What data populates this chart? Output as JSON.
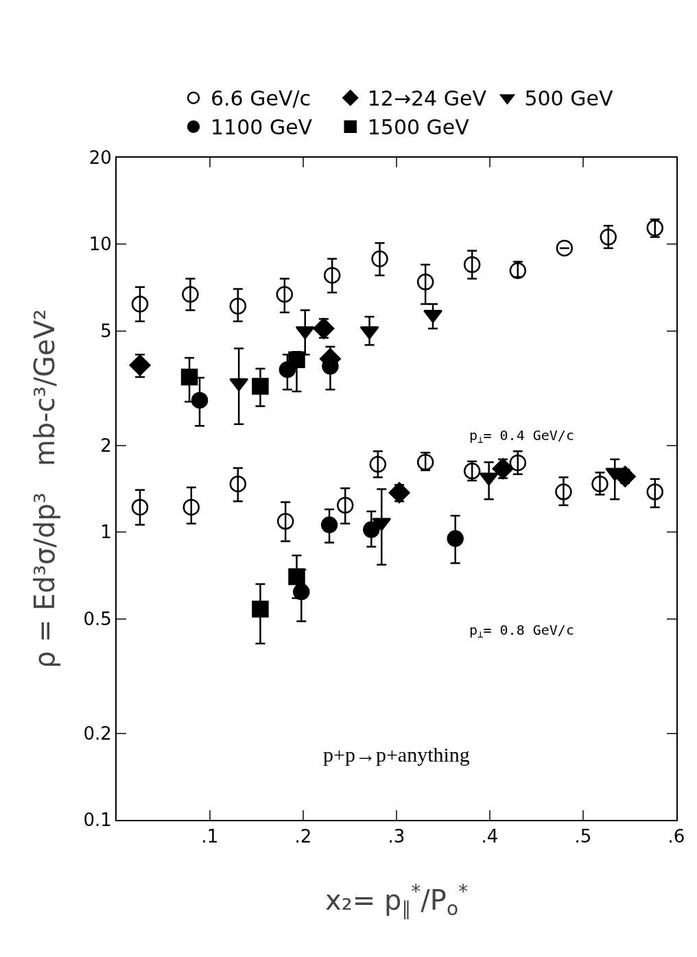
{
  "chart_data": {
    "type": "scatter",
    "xlabel": "x₂= p$_{∥}$$^{*}$/P$_{o}$$^{*}$",
    "ylabel": "ρ = Ed³σ/dp³   mb-c³/GeV²",
    "annotations": [
      "p$_{⊥}$= 0.4 GeV/c",
      "p$_{⊥}$= 0.8 GeV/c",
      "p+p→p+anything"
    ],
    "xlim": [
      0,
      0.6
    ],
    "xticks": [
      {
        "value": 0.1,
        "label": ".1"
      },
      {
        "value": 0.2,
        "label": ".2"
      },
      {
        "value": 0.3,
        "label": ".3"
      },
      {
        "value": 0.4,
        "label": ".4"
      },
      {
        "value": 0.5,
        "label": ".5"
      },
      {
        "value": 0.6,
        "label": ".6"
      }
    ],
    "ylim": [
      0.1,
      20
    ],
    "yticks": [
      {
        "value": 0.1,
        "label": "0.1"
      },
      {
        "value": 0.2,
        "label": "0.2"
      },
      {
        "value": 0.5,
        "label": "0.5"
      },
      1,
      2,
      5,
      10,
      20
    ],
    "log": "y",
    "grid": false,
    "legend": "top",
    "series": [
      {
        "name": "6.6 GeV/c",
        "color": "#000000",
        "marker": "circle-open",
        "x": [
          0.025,
          0.079,
          0.13,
          0.18,
          0.231,
          0.282,
          0.331,
          0.381,
          0.43,
          0.48,
          0.527,
          0.577,
          0.025,
          0.08,
          0.13,
          0.181,
          0.245,
          0.28,
          0.331,
          0.381,
          0.43,
          0.479,
          0.518,
          0.577
        ],
        "values": [
          6.2,
          6.7,
          6.1,
          6.7,
          7.8,
          8.9,
          7.4,
          8.5,
          8.1,
          9.7,
          10.6,
          11.4,
          1.22,
          1.22,
          1.47,
          1.09,
          1.24,
          1.72,
          1.75,
          1.63,
          1.74,
          1.38,
          1.47,
          1.38
        ],
        "errors": [
          [
            5.4,
            7.1
          ],
          [
            5.9,
            7.6
          ],
          [
            5.4,
            7.0
          ],
          [
            5.8,
            7.6
          ],
          [
            6.8,
            8.9
          ],
          [
            7.8,
            10.1
          ],
          [
            6.2,
            8.5
          ],
          [
            7.6,
            9.5
          ],
          [
            7.7,
            8.7
          ],
          null,
          [
            9.7,
            11.6
          ],
          [
            10.6,
            12.2
          ],
          [
            1.06,
            1.4
          ],
          [
            1.07,
            1.43
          ],
          [
            1.28,
            1.67
          ],
          [
            0.93,
            1.27
          ],
          [
            1.07,
            1.42
          ],
          [
            1.55,
            1.91
          ],
          [
            1.64,
            1.89
          ],
          [
            1.51,
            1.76
          ],
          [
            1.59,
            1.91
          ],
          [
            1.24,
            1.55
          ],
          [
            1.35,
            1.61
          ],
          [
            1.22,
            1.53
          ]
        ]
      },
      {
        "name": "12→24 GeV",
        "color": "#000000",
        "marker": "diamond",
        "x": [
          0.025,
          0.222,
          0.229,
          0.303,
          0.414,
          0.545
        ],
        "values": [
          3.8,
          5.1,
          4.0,
          1.37,
          1.66,
          1.56
        ],
        "errors": [
          [
            3.46,
            4.14
          ],
          [
            4.73,
            5.5
          ],
          null,
          [
            1.28,
            1.46
          ],
          [
            1.54,
            1.79
          ],
          [
            1.48,
            1.65
          ]
        ]
      },
      {
        "name": "500 GeV",
        "color": "#000000",
        "marker": "triangle-down",
        "x": [
          0.131,
          0.202,
          0.271,
          0.339,
          0.284,
          0.399,
          0.534
        ],
        "values": [
          3.3,
          5.0,
          5.0,
          5.7,
          1.08,
          1.55,
          1.61
        ],
        "errors": [
          [
            2.37,
            4.35
          ],
          [
            4.14,
            5.9
          ],
          [
            4.47,
            5.6
          ],
          [
            5.1,
            6.2
          ],
          [
            0.77,
            1.41
          ],
          [
            1.3,
            1.75
          ],
          [
            1.3,
            1.79
          ]
        ]
      },
      {
        "name": "1100 GeV",
        "color": "#000000",
        "marker": "circle",
        "x": [
          0.089,
          0.183,
          0.229,
          0.228,
          0.273,
          0.363,
          0.198
        ],
        "values": [
          2.87,
          3.67,
          3.77,
          1.06,
          1.02,
          0.95,
          0.62
        ],
        "errors": [
          [
            2.34,
            3.44
          ],
          [
            3.13,
            4.14
          ],
          [
            3.13,
            4.41
          ],
          [
            0.92,
            1.2
          ],
          [
            0.89,
            1.18
          ],
          [
            0.78,
            1.14
          ],
          [
            0.49,
            0.74
          ]
        ]
      },
      {
        "name": "1500 GeV",
        "color": "#000000",
        "marker": "square",
        "x": [
          0.078,
          0.154,
          0.193,
          0.193,
          0.154
        ],
        "values": [
          3.46,
          3.21,
          3.97,
          0.7,
          0.54
        ],
        "errors": [
          [
            2.84,
            4.03
          ],
          [
            2.74,
            3.7
          ],
          [
            3.08,
            4.23
          ],
          [
            0.59,
            0.83
          ],
          [
            0.41,
            0.66
          ]
        ]
      }
    ]
  }
}
